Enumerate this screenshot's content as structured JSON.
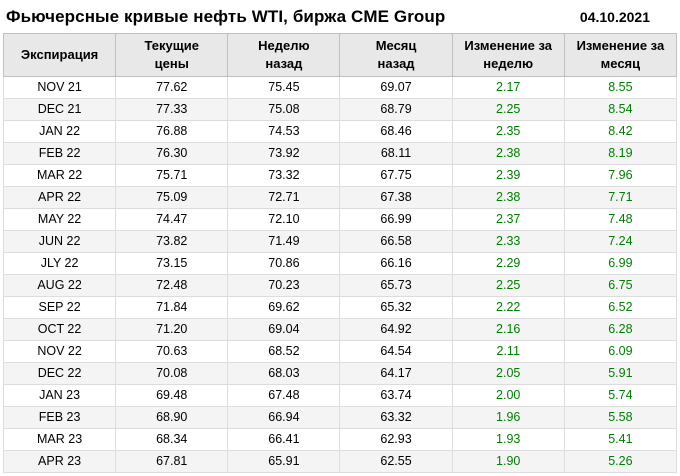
{
  "chart_data": {
    "type": "table",
    "title": "Фьючерсные кривые нефть WTI, биржа CME Group",
    "date": "04.10.2021",
    "columns": [
      "Экспирация",
      "Текущие\nцены",
      "Неделю\nназад",
      "Месяц\nназад",
      "Изменение за\nнеделю",
      "Изменение за\nмесяц"
    ],
    "rows": [
      [
        "NOV 21",
        "77.62",
        "75.45",
        "69.07",
        "2.17",
        "8.55"
      ],
      [
        "DEC 21",
        "77.33",
        "75.08",
        "68.79",
        "2.25",
        "8.54"
      ],
      [
        "JAN 22",
        "76.88",
        "74.53",
        "68.46",
        "2.35",
        "8.42"
      ],
      [
        "FEB 22",
        "76.30",
        "73.92",
        "68.11",
        "2.38",
        "8.19"
      ],
      [
        "MAR 22",
        "75.71",
        "73.32",
        "67.75",
        "2.39",
        "7.96"
      ],
      [
        "APR 22",
        "75.09",
        "72.71",
        "67.38",
        "2.38",
        "7.71"
      ],
      [
        "MAY 22",
        "74.47",
        "72.10",
        "66.99",
        "2.37",
        "7.48"
      ],
      [
        "JUN 22",
        "73.82",
        "71.49",
        "66.58",
        "2.33",
        "7.24"
      ],
      [
        "JLY 22",
        "73.15",
        "70.86",
        "66.16",
        "2.29",
        "6.99"
      ],
      [
        "AUG 22",
        "72.48",
        "70.23",
        "65.73",
        "2.25",
        "6.75"
      ],
      [
        "SEP 22",
        "71.84",
        "69.62",
        "65.32",
        "2.22",
        "6.52"
      ],
      [
        "OCT 22",
        "71.20",
        "69.04",
        "64.92",
        "2.16",
        "6.28"
      ],
      [
        "NOV 22",
        "70.63",
        "68.52",
        "64.54",
        "2.11",
        "6.09"
      ],
      [
        "DEC 22",
        "70.08",
        "68.03",
        "64.17",
        "2.05",
        "5.91"
      ],
      [
        "JAN 23",
        "69.48",
        "67.48",
        "63.74",
        "2.00",
        "5.74"
      ],
      [
        "FEB 23",
        "68.90",
        "66.94",
        "63.32",
        "1.96",
        "5.58"
      ],
      [
        "MAR 23",
        "68.34",
        "66.41",
        "62.93",
        "1.93",
        "5.41"
      ],
      [
        "APR 23",
        "67.81",
        "65.91",
        "62.55",
        "1.90",
        "5.26"
      ]
    ],
    "green_change_columns": [
      4,
      5
    ]
  },
  "colors": {
    "positive_change": "#008000",
    "header_bg": "#e8e8e8",
    "row_alt_bg": "#f4f4f4",
    "border": "#c0c0c0"
  }
}
